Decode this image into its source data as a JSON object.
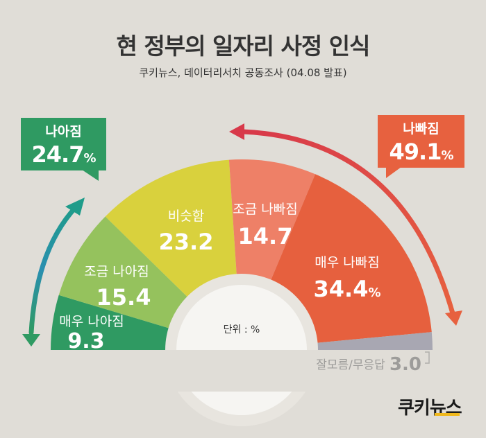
{
  "title": "현 정부의 일자리 사정 인식",
  "subtitle": "쿠키뉴스, 데이터리서치 공동조사 (04.08 발표)",
  "unit_label": "단위 : %",
  "callouts": {
    "better": {
      "label": "나아짐",
      "value": "24.7",
      "unit": "%"
    },
    "worse": {
      "label": "나빠짐",
      "value": "49.1",
      "unit": "%"
    }
  },
  "logo": "쿠키뉴스",
  "colors": {
    "background": "#e0ddd7",
    "better_callout": "#2f9a62",
    "worse_callout": "#e7613f"
  },
  "chart_data": {
    "type": "pie",
    "variant": "semicircle-donut",
    "unit": "%",
    "slices": [
      {
        "label": "매우 나아짐",
        "value": 9.3,
        "display": "9.3",
        "color": "#2f9a62"
      },
      {
        "label": "조금 나아짐",
        "value": 15.4,
        "display": "15.4",
        "color": "#95c25d"
      },
      {
        "label": "비슷함",
        "value": 23.2,
        "display": "23.2",
        "color": "#d9d13d"
      },
      {
        "label": "조금 나빠짐",
        "value": 14.7,
        "display": "14.7",
        "color": "#ee8067"
      },
      {
        "label": "매우 나빠짐",
        "value": 34.4,
        "display": "34.4",
        "unit": "%",
        "color": "#e6603e"
      },
      {
        "label": "잘모름/무응답",
        "value": 3.0,
        "display": "3.0",
        "color": "#a8a7b2"
      }
    ]
  }
}
